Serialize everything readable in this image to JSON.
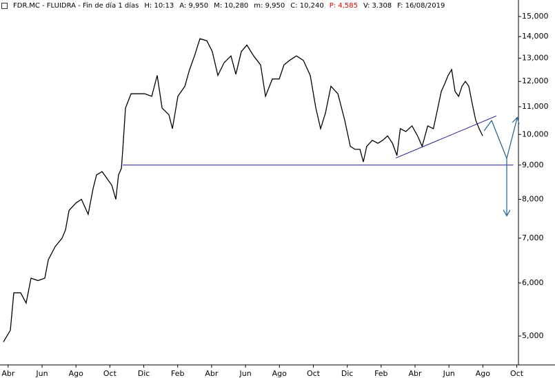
{
  "chart_data": {
    "type": "line",
    "title": "FDR.MC - FLUIDRA - Fin de día 1 días",
    "info": [
      {
        "text": "H: 10:13",
        "color": "#000000"
      },
      {
        "text": "A: 9,950",
        "color": "#000000"
      },
      {
        "text": "M: 10,280",
        "color": "#000000"
      },
      {
        "text": "m: 9,950",
        "color": "#000000"
      },
      {
        "text": "C: 10,240",
        "color": "#000000"
      },
      {
        "text": "P: 4,585",
        "color": "#e00000"
      },
      {
        "text": "V: 3.308",
        "color": "#000000"
      },
      {
        "text": "F: 16/08/2019",
        "color": "#000000"
      }
    ],
    "log_scale": true,
    "xlim": [
      -0.4,
      30.1
    ],
    "xticks": [
      {
        "value": 0,
        "label": "Abr"
      },
      {
        "value": 2,
        "label": "Jun"
      },
      {
        "value": 4,
        "label": "Ago"
      },
      {
        "value": 6,
        "label": "Oct"
      },
      {
        "value": 8,
        "label": "Dic"
      },
      {
        "value": 10,
        "label": "Feb"
      },
      {
        "value": 12,
        "label": "Abr"
      },
      {
        "value": 14,
        "label": "Jun"
      },
      {
        "value": 16,
        "label": "Ago"
      },
      {
        "value": 18,
        "label": "Oct"
      },
      {
        "value": 20,
        "label": "Dic"
      },
      {
        "value": 22,
        "label": "Feb"
      },
      {
        "value": 24,
        "label": "Abr"
      },
      {
        "value": 26,
        "label": "Jun"
      },
      {
        "value": 28,
        "label": "Ago"
      },
      {
        "value": 30,
        "label": "Oct"
      }
    ],
    "ylim": [
      4527,
      15579
    ],
    "yticks": [
      {
        "value": 5000,
        "label": "5,000"
      },
      {
        "value": 6000,
        "label": "6,000"
      },
      {
        "value": 7000,
        "label": "7,000"
      },
      {
        "value": 8000,
        "label": "8,000"
      },
      {
        "value": 9000,
        "label": "9,000"
      },
      {
        "value": 10000,
        "label": "10,000"
      },
      {
        "value": 11000,
        "label": "11,000"
      },
      {
        "value": 12000,
        "label": "12,000"
      },
      {
        "value": 13000,
        "label": "13,000"
      },
      {
        "value": 14000,
        "label": "14,000"
      },
      {
        "value": 15000,
        "label": "15,000"
      }
    ],
    "series": [
      {
        "color": "#000000",
        "x": [
          -0.28,
          0.13,
          0.33,
          0.74,
          1.06,
          1.35,
          1.76,
          2.16,
          2.37,
          2.77,
          3.18,
          3.38,
          3.59,
          4.0,
          4.32,
          4.72,
          5.01,
          5.21,
          5.54,
          5.82,
          6.11,
          6.35,
          6.51,
          6.68,
          6.76,
          6.92,
          7.25,
          7.65,
          8.06,
          8.47,
          8.79,
          9.08,
          9.48,
          9.69,
          10.01,
          10.42,
          10.7,
          10.99,
          11.31,
          11.72,
          12.04,
          12.37,
          12.74,
          13.14,
          13.43,
          13.75,
          14.08,
          14.48,
          14.89,
          15.18,
          15.58,
          15.99,
          16.27,
          16.6,
          17.0,
          17.41,
          17.82,
          18.15,
          18.43,
          18.71,
          19.04,
          19.45,
          19.85,
          20.18,
          20.46,
          20.75,
          20.95,
          21.15,
          21.48,
          21.81,
          22.09,
          22.38,
          22.67,
          22.93,
          23.13,
          23.46,
          23.82,
          24.15,
          24.42,
          24.75,
          25.08,
          25.34,
          25.55,
          25.75,
          25.95,
          26.16,
          26.36,
          26.57,
          26.77,
          26.97,
          27.17,
          27.38,
          27.58,
          27.78,
          27.99
        ],
        "values": [
          4900,
          5100,
          5800,
          5800,
          5600,
          6100,
          6050,
          6100,
          6500,
          6800,
          7000,
          7200,
          7700,
          7900,
          8000,
          7600,
          8300,
          8700,
          8800,
          8600,
          8400,
          8000,
          8700,
          8900,
          9500,
          10950,
          11500,
          11500,
          11500,
          11400,
          12250,
          10950,
          10700,
          10200,
          11400,
          11800,
          12500,
          13100,
          13900,
          13800,
          13300,
          12250,
          12800,
          13100,
          12300,
          13300,
          13600,
          13100,
          12700,
          11400,
          12100,
          12100,
          12700,
          12900,
          13100,
          12900,
          12250,
          10950,
          10200,
          10750,
          11800,
          11500,
          10500,
          9600,
          9500,
          9500,
          9100,
          9600,
          9800,
          9700,
          9800,
          9950,
          9700,
          9300,
          10200,
          10100,
          10300,
          9950,
          9600,
          10300,
          10200,
          10950,
          11600,
          11900,
          12250,
          12500,
          11600,
          11400,
          11800,
          12000,
          11800,
          11100,
          10500,
          10200,
          9950
        ]
      }
    ],
    "overlays": [
      {
        "color": "#1a1a9a",
        "x": [
          6.76,
          29.8
        ],
        "values": [
          9000,
          9000
        ]
      },
      {
        "color": "#1a1a9a",
        "x": [
          22.86,
          28.8
        ],
        "values": [
          9220,
          10660
        ]
      },
      {
        "color": "#2d6a9a",
        "x": [
          28.07,
          28.52,
          29.41,
          30.02
        ],
        "values": [
          10125,
          10490,
          9210,
          10570
        ]
      },
      {
        "color": "#2d6a9a",
        "x": [
          29.41,
          29.41
        ],
        "values": [
          9210,
          7580
        ]
      }
    ]
  }
}
